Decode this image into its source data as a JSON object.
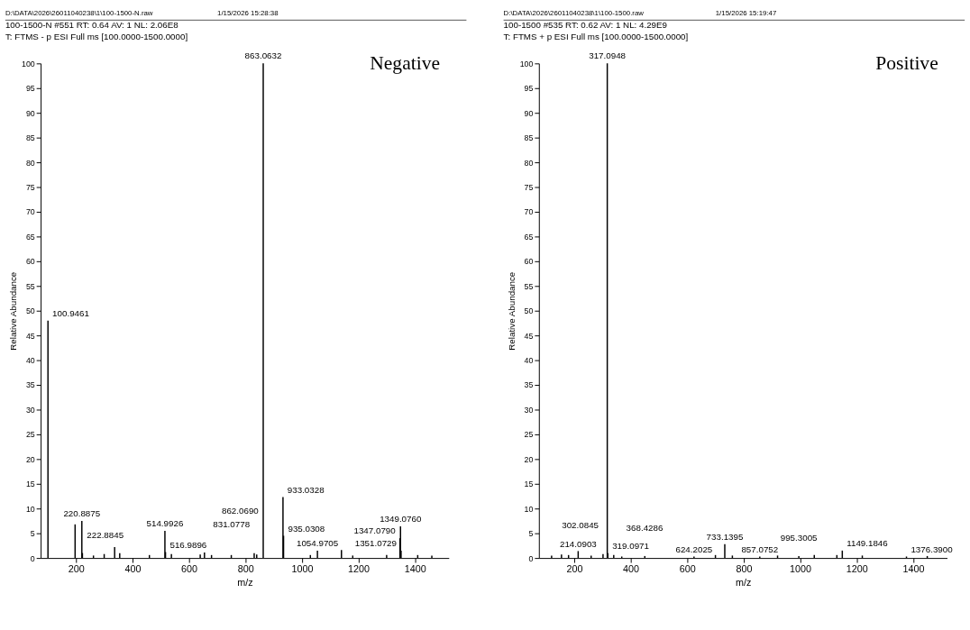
{
  "chart_data": [
    {
      "type": "bar",
      "title": "100-1500-N #551 RT: 0.64 AV: 1 NL: 2.06E8",
      "subtitle": "T: FTMS - p ESI Full ms [100.0000-1500.0000]",
      "xlabel": "m/z",
      "ylabel": "Relative Abundance",
      "x": [
        100.9461,
        197,
        220.8875,
        222.8845,
        262,
        300,
        337,
        355,
        460,
        514.9926,
        516.9896,
        538,
        640,
        655,
        680,
        750,
        831.0778,
        840,
        862.069,
        863.0632,
        933.0328,
        935.0308,
        1030,
        1054.9705,
        1140,
        1180,
        1300,
        1347.079,
        1349.076,
        1351.0729,
        1410,
        1460
      ],
      "series": [
        {
          "color": "#000000",
          "values": [
            48,
            6.8,
            7.5,
            1.0,
            0.5,
            0.8,
            2.2,
            1.0,
            0.6,
            5.5,
            1.2,
            0.8,
            0.7,
            1.1,
            0.6,
            0.6,
            1.0,
            0.7,
            null,
            100,
            12.3,
            4.5,
            0.6,
            1.5,
            1.6,
            0.5,
            0.6,
            4.0,
            6.4,
            1.5,
            0.6,
            0.5
          ]
        }
      ],
      "xlim": [
        75,
        1520
      ],
      "xticks": [
        200,
        400,
        600,
        800,
        1000,
        1200,
        1400
      ],
      "ylim": [
        0,
        100
      ],
      "yticks": [
        0,
        5,
        10,
        15,
        20,
        25,
        30,
        35,
        40,
        45,
        50,
        55,
        60,
        65,
        70,
        75,
        80,
        85,
        90,
        95,
        100
      ],
      "grid": false,
      "annotations": [
        "D:\\DATA\\2026\\26011040238\\1\\100-1500-N.raw",
        "1/15/2026 15:28:38",
        "Negative",
        {
          "text": "100.9461",
          "x": 100.9461,
          "y": 48
        },
        {
          "text": "220.8875",
          "x": 220.8875,
          "y": 7.5
        },
        {
          "text": "222.8845",
          "x": 222.8845,
          "y": 1.0
        },
        {
          "text": "514.9926",
          "x": 514.9926,
          "y": 5.5
        },
        {
          "text": "516.9896",
          "x": 516.9896,
          "y": 1.2
        },
        {
          "text": "831.0778",
          "x": 831.0778,
          "y": 1.0
        },
        {
          "text": "862.0690",
          "x": 862.069,
          "y": 6.0
        },
        {
          "text": "863.0632",
          "x": 863.0632,
          "y": 100
        },
        {
          "text": "933.0328",
          "x": 933.0328,
          "y": 12.3
        },
        {
          "text": "935.0308",
          "x": 935.0308,
          "y": 4.5
        },
        {
          "text": "1054.9705",
          "x": 1054.9705,
          "y": 1.5
        },
        {
          "text": "1347.0790",
          "x": 1347.079,
          "y": 4.0
        },
        {
          "text": "1349.0760",
          "x": 1349.076,
          "y": 6.4
        },
        {
          "text": "1351.0729",
          "x": 1351.0729,
          "y": 1.5
        }
      ]
    },
    {
      "type": "bar",
      "title": "100-1500 #535 RT: 0.62 AV: 1 NL: 4.29E9",
      "subtitle": "T: FTMS + p ESI Full ms [100.0000-1500.0000]",
      "xlabel": "m/z",
      "ylabel": "Relative Abundance",
      "x": [
        120,
        155,
        180,
        214.0903,
        260,
        302.0845,
        317.0948,
        319.0971,
        340,
        368.4286,
        450,
        624.2025,
        700,
        733.1395,
        760,
        857.0752,
        920,
        995.3005,
        1050,
        1130,
        1149.1846,
        1220,
        1376.39,
        1450
      ],
      "series": [
        {
          "color": "#000000",
          "values": [
            0.5,
            0.7,
            0.6,
            1.4,
            0.5,
            0.8,
            100,
            1.0,
            0.6,
            0.3,
            0.4,
            0.3,
            0.6,
            2.8,
            0.5,
            0.3,
            0.5,
            0.4,
            0.6,
            0.6,
            1.5,
            0.5,
            0.3,
            0.4
          ]
        }
      ],
      "xlim": [
        75,
        1520
      ],
      "xticks": [
        200,
        400,
        600,
        800,
        1000,
        1200,
        1400
      ],
      "ylim": [
        0,
        100
      ],
      "yticks": [
        0,
        5,
        10,
        15,
        20,
        25,
        30,
        35,
        40,
        45,
        50,
        55,
        60,
        65,
        70,
        75,
        80,
        85,
        90,
        95,
        100
      ],
      "grid": false,
      "annotations": [
        "D:\\DATA\\2026\\26011040238\\1\\100-1500.raw",
        "1/15/2026 15:19:47",
        "Positive",
        {
          "text": "214.0903",
          "x": 214.0903,
          "y": 1.4
        },
        {
          "text": "302.0845",
          "x": 302.0845,
          "y": 0.8
        },
        {
          "text": "317.0948",
          "x": 317.0948,
          "y": 100
        },
        {
          "text": "319.0971",
          "x": 319.0971,
          "y": 1.0
        },
        {
          "text": "368.4286",
          "x": 368.4286,
          "y": 0.3
        },
        {
          "text": "624.2025",
          "x": 624.2025,
          "y": 0.3
        },
        {
          "text": "733.1395",
          "x": 733.1395,
          "y": 2.8
        },
        {
          "text": "857.0752",
          "x": 857.0752,
          "y": 0.3
        },
        {
          "text": "995.3005",
          "x": 995.3005,
          "y": 0.4
        },
        {
          "text": "1149.1846",
          "x": 1149.1846,
          "y": 1.5
        },
        {
          "text": "1376.3900",
          "x": 1376.39,
          "y": 0.3
        }
      ]
    }
  ]
}
